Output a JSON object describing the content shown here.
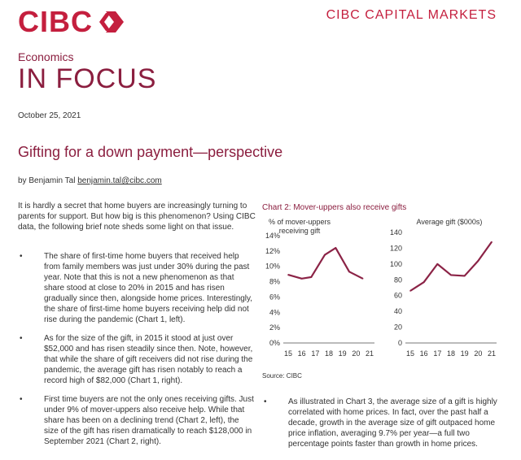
{
  "logo": {
    "text": "CIBC",
    "mark_color": "#c41f3e"
  },
  "header": {
    "brand": "CIBC CAPITAL MARKETS",
    "section": "Economics",
    "title": "IN FOCUS",
    "date": "October 25, 2021"
  },
  "article": {
    "headline": "Gifting for a down payment—perspective",
    "byline_prefix": "by",
    "author": "Benjamin Tal",
    "email": "benjamin.tal@cibc.com",
    "intro": "It is hardly a secret that home buyers are increasingly turning to parents for support. But how big is this phenomenon? Using CIBC data, the following brief note sheds some light on that issue.",
    "bullet_symbol": "•",
    "bullets": [
      "The share of first-time home buyers that received help from family members was just under 30% during the past year. Note that this is not a new phenomenon as that share stood at close to 20% in 2015 and has risen gradually since then, alongside home prices. Interestingly, the share of first-time home buyers receiving help did not rise during the pandemic (Chart 1, left).",
      "As for the size of the gift, in 2015 it stood at just over $52,000 and has risen steadily since then. Note, however, that while the share of gift receivers did not rise during the pandemic, the average gift has risen notably to reach a record high of $82,000 (Chart 1, right).",
      "First time buyers are not the only ones receiving gifts. Just under 9% of mover-uppers also receive help. While that share has been on a declining trend (Chart 2, left), the size of the gift has risen dramatically to reach $128,000 in September 2021 (Chart 2, right).",
      "As illustrated in Chart 3, the average size of a gift is highly correlated with home prices. In fact, over the past half a decade, growth in the average size of gift outpaced home price inflation, averaging 9.7% per year—a full two percentage points faster than growth in home prices."
    ]
  },
  "chart": {
    "title": "Chart 2: Mover-uppers also receive gifts",
    "source": "Source: CIBC"
  },
  "chart_data": [
    {
      "type": "line",
      "title": "% of mover-uppers receiving gift",
      "title_lines": [
        "% of mover-uppers",
        "receiving gift"
      ],
      "categories": [
        "15",
        "16",
        "17",
        "18",
        "19",
        "20",
        "21"
      ],
      "x": [
        15,
        16,
        16.7,
        17.7,
        18.5,
        19.5,
        20.5
      ],
      "values": [
        8.9,
        8.4,
        8.6,
        11.5,
        12.4,
        9.3,
        8.4
      ],
      "ylim": [
        0,
        14
      ],
      "yticks": [
        "0%",
        "2%",
        "4%",
        "6%",
        "8%",
        "10%",
        "12%",
        "14%"
      ],
      "grid": false,
      "color": "#8b2346"
    },
    {
      "type": "line",
      "title": "Average gift ($000s)",
      "title_lines": [
        "Average gift ($000s)"
      ],
      "categories": [
        "15",
        "16",
        "17",
        "18",
        "19",
        "20",
        "21"
      ],
      "x": [
        15,
        16,
        17,
        18,
        19,
        20,
        21
      ],
      "values": [
        66,
        77,
        100,
        86,
        85,
        104,
        128
      ],
      "ylim": [
        0,
        140
      ],
      "yticks": [
        "0",
        "20",
        "40",
        "60",
        "80",
        "100",
        "120",
        "140"
      ],
      "grid": false,
      "color": "#8b2346"
    }
  ]
}
